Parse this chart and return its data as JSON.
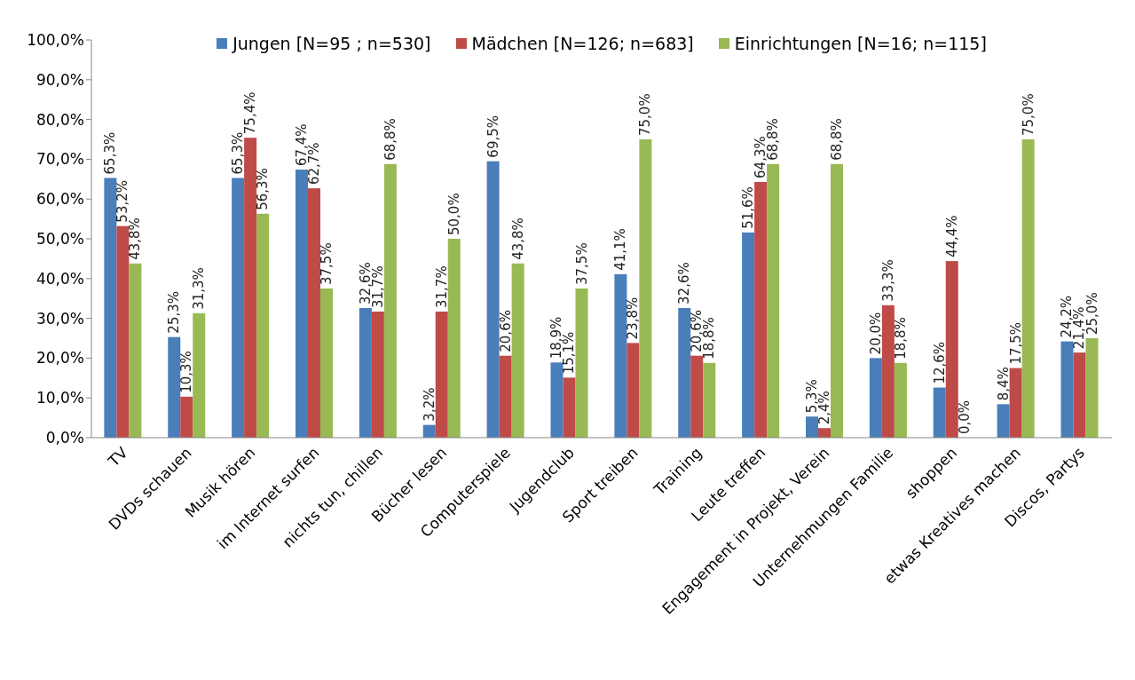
{
  "chart_data": {
    "type": "bar",
    "categories": [
      "TV",
      "DVDs schauen",
      "Musik hören",
      "im Internet surfen",
      "nichts tun, chillen",
      "Bücher lesen",
      "Computerspiele",
      "Jugendclub",
      "Sport treiben",
      "Training",
      "Leute treffen",
      "Engagement in Projekt, Verein",
      "Unternehmungen Familie",
      "shoppen",
      "etwas Kreatives machen",
      "Discos, Partys"
    ],
    "series": [
      {
        "name": "Jungen [N=95 ; n=530]",
        "color": "#4a7ebb",
        "values": [
          65.3,
          25.3,
          65.3,
          67.4,
          32.6,
          3.2,
          69.5,
          18.9,
          41.1,
          32.6,
          51.6,
          5.3,
          20.0,
          12.6,
          8.4,
          24.2
        ],
        "value_labels": [
          "65,3%",
          "25,3%",
          "65,3%",
          "67,4%",
          "32,6%",
          "3,2%",
          "69,5%",
          "18,9%",
          "41,1%",
          "32,6%",
          "51,6%",
          "5,3%",
          "20,0%",
          "12,6%",
          "8,4%",
          "24,2%"
        ]
      },
      {
        "name": "Mädchen [N=126; n=683]",
        "color": "#be4b48",
        "values": [
          53.2,
          10.3,
          75.4,
          62.7,
          31.7,
          31.7,
          20.6,
          15.1,
          23.8,
          20.6,
          64.3,
          2.4,
          33.3,
          44.4,
          17.5,
          21.4
        ],
        "value_labels": [
          "53,2%",
          "10,3%",
          "75,4%",
          "62,7%",
          "31,7%",
          "31,7%",
          "20,6%",
          "15,1%",
          "23,8%",
          "20,6%",
          "64,3%",
          "2,4%",
          "33,3%",
          "44,4%",
          "17,5%",
          "21,4%"
        ]
      },
      {
        "name": "Einrichtungen [N=16; n=115]",
        "color": "#98b954",
        "values": [
          43.8,
          31.3,
          56.3,
          37.5,
          68.8,
          50.0,
          43.8,
          37.5,
          75.0,
          18.8,
          68.8,
          68.8,
          18.8,
          0.0,
          75.0,
          25.0
        ],
        "value_labels": [
          "43,8%",
          "31,3%",
          "56,3%",
          "37,5%",
          "68,8%",
          "50,0%",
          "43,8%",
          "37,5%",
          "75,0%",
          "18,8%",
          "68,8%",
          "68,8%",
          "18,8%",
          "0,0%",
          "75,0%",
          "25,0%"
        ]
      }
    ],
    "ylim": [
      0,
      100
    ],
    "yticks": [
      {
        "value": 0,
        "label": "0,0%"
      },
      {
        "value": 10,
        "label": "10,0%"
      },
      {
        "value": 20,
        "label": "20,0%"
      },
      {
        "value": 30,
        "label": "30,0%"
      },
      {
        "value": 40,
        "label": "40,0%"
      },
      {
        "value": 50,
        "label": "50,0%"
      },
      {
        "value": 60,
        "label": "60,0%"
      },
      {
        "value": 70,
        "label": "70,0%"
      },
      {
        "value": 80,
        "label": "80,0%"
      },
      {
        "value": 90,
        "label": "90,0%"
      },
      {
        "value": 100,
        "label": "100,0%"
      }
    ],
    "legend": "top"
  }
}
